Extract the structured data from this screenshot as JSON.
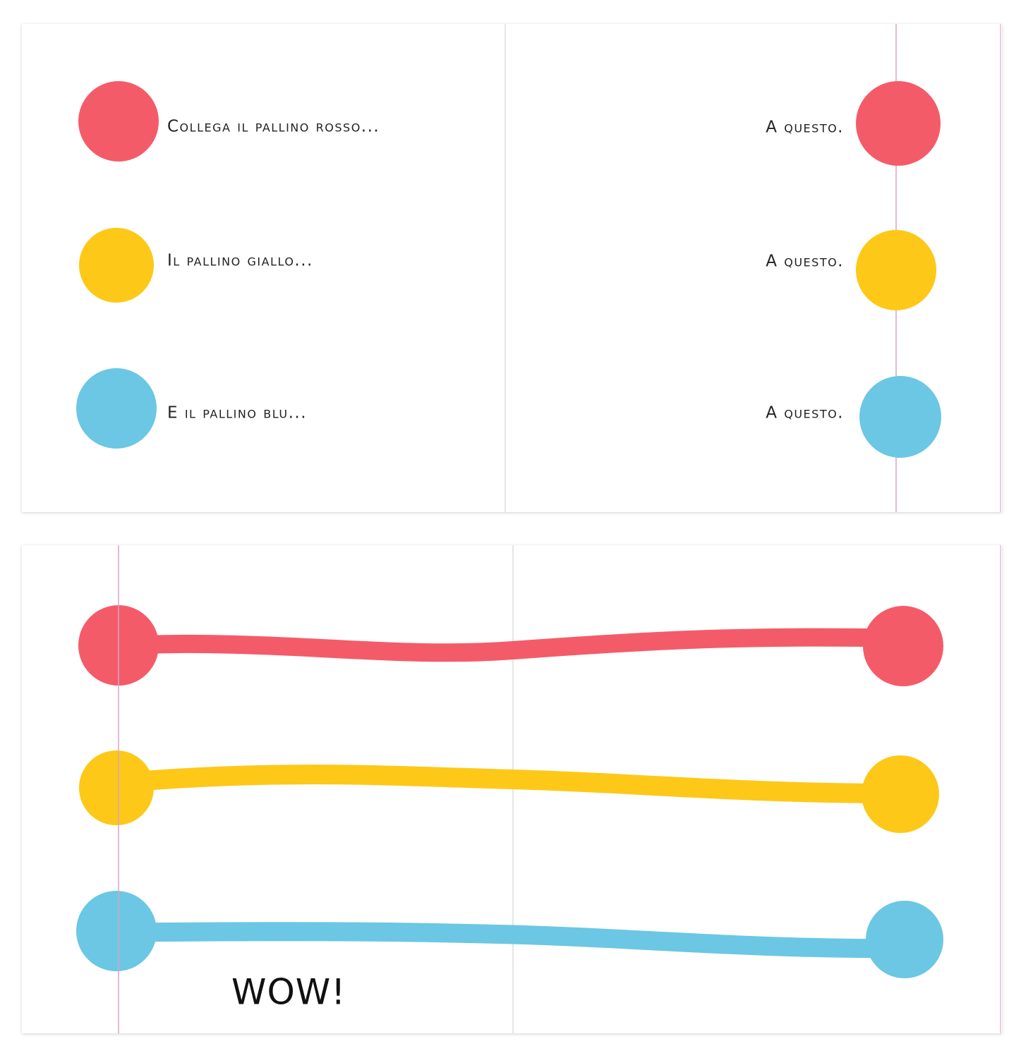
{
  "top_spread": {
    "left_lines": [
      "Collega il pallino rosso...",
      "Il pallino giallo...",
      "E il pallino blu..."
    ],
    "right_lines": [
      "A questo.",
      "A questo.",
      "A questo."
    ]
  },
  "bottom_spread": {
    "exclamation": "WOW!"
  }
}
